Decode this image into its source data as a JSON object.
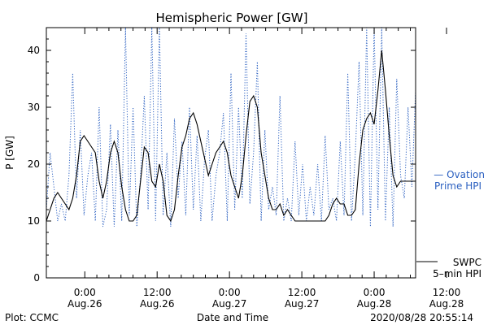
{
  "chart_data": {
    "type": "line",
    "title": "Hemispheric Power [GW]",
    "xlabel": "Date and Time",
    "ylabel": "P [GW]",
    "ylim": [
      0,
      44
    ],
    "xlim_hours_from_aug26_0000": [
      -3,
      46
    ],
    "y_ticks": [
      0,
      10,
      20,
      30,
      40
    ],
    "x_ticks": [
      {
        "time": "0:00",
        "date": "Aug.26"
      },
      {
        "time": "12:00",
        "date": "Aug.26"
      },
      {
        "time": "0:00",
        "date": "Aug.27"
      },
      {
        "time": "12:00",
        "date": "Aug.27"
      },
      {
        "time": "0:00",
        "date": "Aug.28"
      },
      {
        "time": "12:00",
        "date": "Aug.28"
      }
    ],
    "legend": [
      {
        "name": "— Ovation",
        "line2": "Prime HPI",
        "color": "#2a5fc0",
        "style": "dotted"
      },
      {
        "name": "SWPC",
        "line2": "5–min HPI",
        "color": "#000000",
        "style": "solid"
      }
    ],
    "series": [
      {
        "name": "SWPC 5-min HPI",
        "color": "#000000",
        "style": "solid",
        "x": [
          -3,
          -2.5,
          -2,
          -1.5,
          -1,
          -0.5,
          0,
          0.5,
          1,
          1.5,
          2,
          2.5,
          3,
          3.5,
          4,
          4.5,
          5,
          5.5,
          6,
          6.5,
          7,
          7.5,
          8,
          8.5,
          9,
          9.5,
          10,
          10.5,
          11,
          11.5,
          12,
          12.5,
          13,
          13.5,
          14,
          14.5,
          15,
          15.5,
          16,
          16.5,
          17,
          17.5,
          18,
          18.5,
          19,
          19.5,
          20,
          20.5,
          21,
          21.5,
          22,
          22.5,
          23,
          23.5,
          24,
          24.5,
          25,
          25.5,
          26,
          26.5,
          27,
          27.5,
          28,
          28.5,
          29,
          29.5,
          30,
          30.5,
          31,
          31.5,
          32,
          32.5,
          33,
          33.5,
          34,
          34.5,
          35,
          35.5,
          36,
          36.5,
          37,
          37.5,
          38,
          38.5,
          39,
          39.5,
          40,
          40.5,
          41,
          41.5,
          42,
          42.5,
          43,
          43.5,
          44,
          44.5,
          45,
          45.5,
          46
        ],
        "y": [
          10,
          12,
          14,
          15,
          14,
          13,
          12,
          14,
          18,
          24,
          25,
          24,
          23,
          22,
          17,
          14,
          17,
          22,
          24,
          22,
          16,
          12,
          10,
          10,
          11,
          17,
          23,
          22,
          17,
          16,
          20,
          17,
          11,
          10,
          12,
          18,
          23,
          25,
          28,
          29,
          27,
          24,
          21,
          18,
          20,
          22,
          23,
          24,
          22,
          18,
          16,
          14,
          18,
          25,
          31,
          32,
          30,
          22,
          18,
          14,
          12,
          12,
          13,
          11,
          12,
          11,
          10,
          10,
          10,
          10,
          10,
          10,
          10,
          10,
          10,
          11,
          13,
          14,
          13,
          13,
          11,
          11,
          12,
          20,
          26,
          28,
          29,
          27,
          33,
          40,
          33,
          25,
          18,
          16,
          17,
          17,
          17,
          17,
          17
        ]
      },
      {
        "name": "Ovation Prime HPI",
        "color": "#2a5fc0",
        "style": "dotted",
        "x": [
          -3,
          -2.5,
          -2,
          -1.5,
          -1,
          -0.5,
          0,
          0.5,
          1,
          1.5,
          2,
          2.5,
          3,
          3.5,
          4,
          4.5,
          5,
          5.5,
          6,
          6.5,
          7,
          7.5,
          8,
          8.5,
          9,
          9.5,
          10,
          10.5,
          11,
          11.5,
          12,
          12.5,
          13,
          13.5,
          14,
          14.5,
          15,
          15.5,
          16,
          16.5,
          17,
          17.5,
          18,
          18.5,
          19,
          19.5,
          20,
          20.5,
          21,
          21.5,
          22,
          22.5,
          23,
          23.5,
          24,
          24.5,
          25,
          25.5,
          26,
          26.5,
          27,
          27.5,
          28,
          28.5,
          29,
          29.5,
          30,
          30.5,
          31,
          31.5,
          32,
          32.5,
          33,
          33.5,
          34,
          34.5,
          35,
          35.5,
          36,
          36.5,
          37,
          37.5,
          38,
          38.5,
          39,
          39.5,
          40,
          40.5,
          41,
          41.5,
          42,
          42.5,
          43,
          43.5,
          44,
          44.5,
          45,
          45.5,
          46
        ],
        "y": [
          12,
          22,
          16,
          10,
          13,
          10,
          18,
          36,
          14,
          26,
          11,
          18,
          22,
          10,
          30,
          9,
          12,
          27,
          9,
          26,
          10,
          44,
          11,
          30,
          9,
          18,
          32,
          12,
          44,
          10,
          44,
          11,
          22,
          9,
          28,
          14,
          24,
          11,
          30,
          12,
          25,
          10,
          21,
          26,
          10,
          18,
          22,
          29,
          10,
          36,
          12,
          30,
          14,
          43,
          13,
          22,
          38,
          10,
          26,
          12,
          16,
          11,
          32,
          10,
          14,
          10,
          24,
          11,
          20,
          10,
          16,
          11,
          20,
          10,
          25,
          12,
          14,
          10,
          24,
          11,
          36,
          10,
          22,
          38,
          11,
          44,
          9,
          44,
          12,
          44,
          10,
          30,
          9,
          35,
          18,
          14,
          30,
          16,
          33
        ]
      }
    ]
  },
  "footer": {
    "plot_credit": "Plot: CCMC",
    "timestamp": "2020/08/28 20:55:14"
  }
}
